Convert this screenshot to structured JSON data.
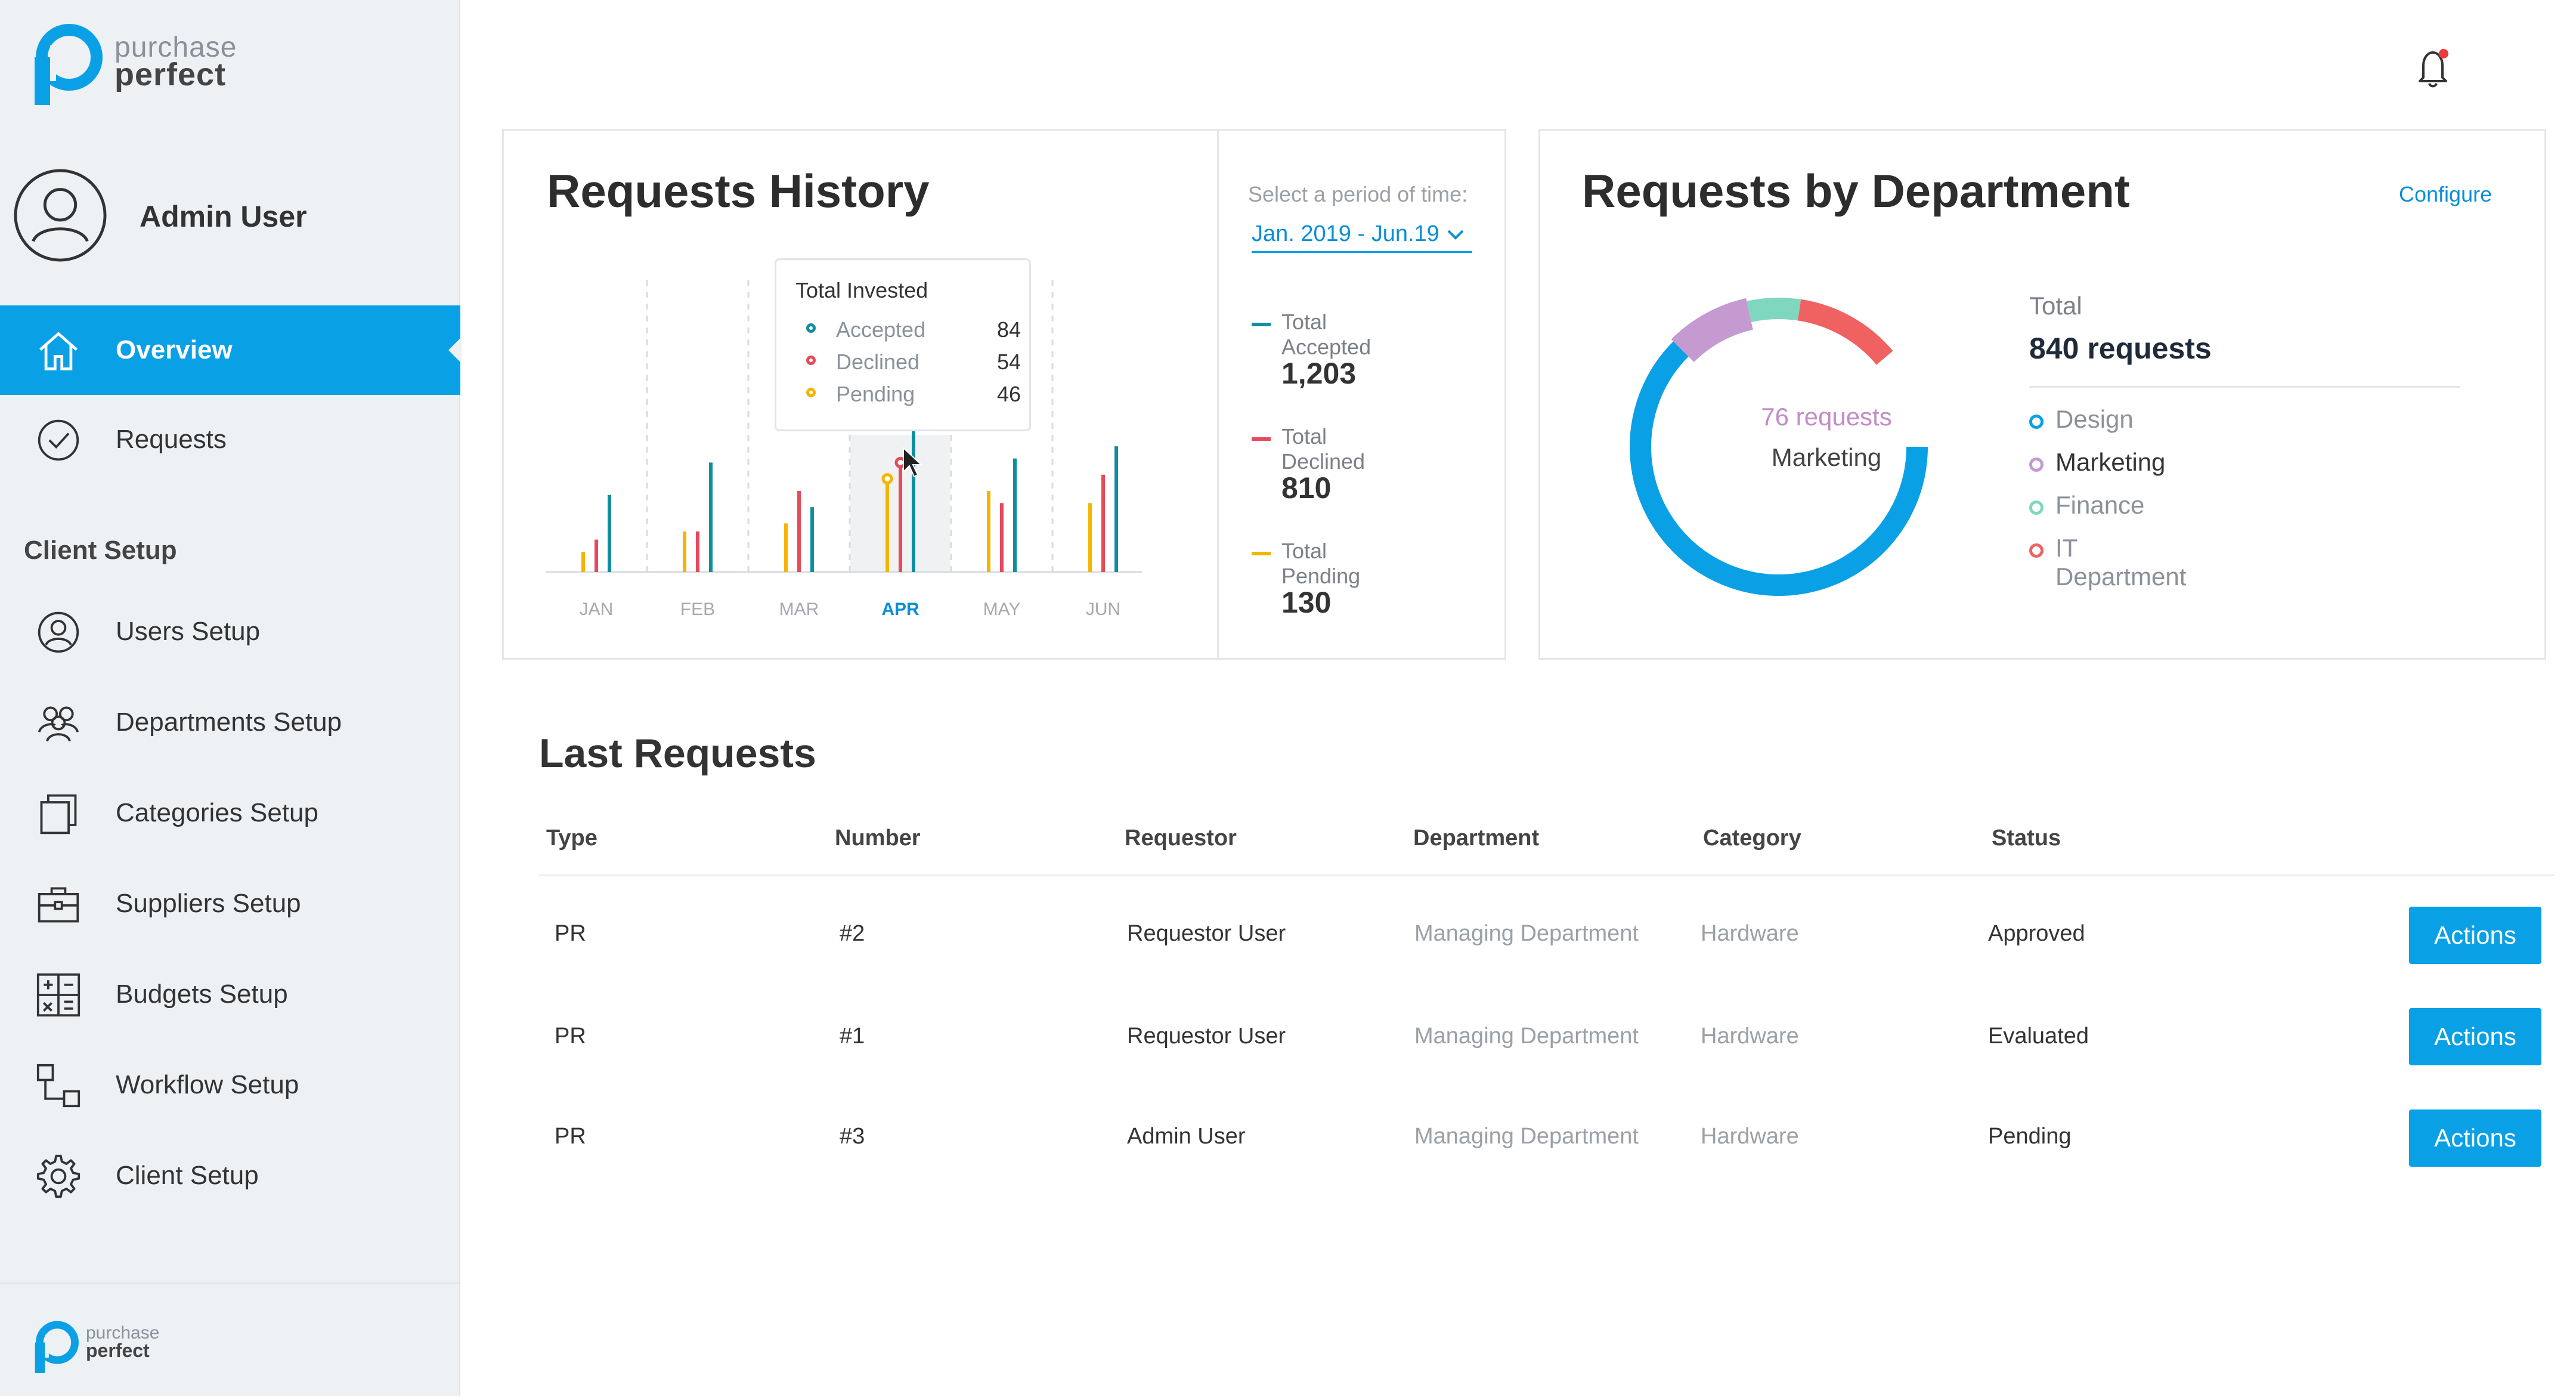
{
  "brand": {
    "line1": "purchase",
    "line2": "perfect",
    "accent": "#0aa0e6"
  },
  "user": {
    "name": "Admin User"
  },
  "nav": {
    "overview": "Overview",
    "requests": "Requests",
    "section": "Client Setup",
    "users": "Users Setup",
    "departments": "Departments Setup",
    "categories": "Categories Setup",
    "suppliers": "Suppliers Setup",
    "budgets": "Budgets Setup",
    "workflow": "Workflow Setup",
    "client": "Client Setup"
  },
  "history": {
    "title": "Requests History",
    "period_label": "Select a period of time:",
    "period_value": "Jan. 2019 - Jun.19",
    "stats": [
      {
        "label": "Total Accepted",
        "value": "1,203",
        "color": "#0f8f9e"
      },
      {
        "label": "Total Declined",
        "value": "810",
        "color": "#e54b5b"
      },
      {
        "label": "Total Pending",
        "value": "130",
        "color": "#f5b400"
      }
    ],
    "tooltip": {
      "title": "Total Invested",
      "rows": [
        {
          "name": "Accepted",
          "value": "84",
          "color": "#0f8f9e"
        },
        {
          "name": "Declined",
          "value": "54",
          "color": "#e54b5b"
        },
        {
          "name": "Pending",
          "value": "46",
          "color": "#f5b400"
        }
      ]
    }
  },
  "chart_data": [
    {
      "type": "bar",
      "title": "Requests History",
      "categories": [
        "JAN",
        "FEB",
        "MAR",
        "APR",
        "MAY",
        "JUN"
      ],
      "highlighted": "APR",
      "series": [
        {
          "name": "Pending",
          "color": "#f5b400",
          "values": [
            10,
            20,
            24,
            46,
            40,
            34
          ]
        },
        {
          "name": "Declined",
          "color": "#e54b5b",
          "values": [
            16,
            20,
            40,
            54,
            34,
            48
          ]
        },
        {
          "name": "Accepted",
          "color": "#0f8f9e",
          "values": [
            38,
            54,
            32,
            84,
            56,
            62
          ]
        }
      ],
      "ylim": [
        0,
        100
      ],
      "grid": false
    },
    {
      "type": "pie",
      "title": "Requests by Department",
      "labels": [
        "Design",
        "Marketing",
        "Finance",
        "IT Department"
      ],
      "values": [
        525,
        76,
        49,
        190
      ],
      "colors": [
        "#0aa0e6",
        "#c59ad0",
        "#7fd7c0",
        "#f06262"
      ]
    }
  ],
  "dept": {
    "title": "Requests by Department",
    "configure": "Configure",
    "total_label": "Total",
    "total_value": "840 requests",
    "center_value": "76 requests",
    "center_label": "Marketing",
    "legend": [
      {
        "label": "Design",
        "color": "#0aa0e6",
        "text_color": "#8a9199"
      },
      {
        "label": "Marketing",
        "color": "#c59ad0",
        "text_color": "#333333"
      },
      {
        "label": "Finance",
        "color": "#7fd7c0",
        "text_color": "#8a9199"
      },
      {
        "label": "IT Department",
        "color": "#f06262",
        "text_color": "#8a9199"
      }
    ]
  },
  "last_requests": {
    "title": "Last Requests",
    "headers": [
      "Type",
      "Number",
      "Requestor",
      "Department",
      "Category",
      "Status"
    ],
    "rows": [
      {
        "type": "PR",
        "number": "#2",
        "requestor": "Requestor User",
        "department": "Managing Department",
        "category": "Hardware",
        "status": "Approved",
        "action": "Actions"
      },
      {
        "type": "PR",
        "number": "#1",
        "requestor": "Requestor User",
        "department": "Managing Department",
        "category": "Hardware",
        "status": "Evaluated",
        "action": "Actions"
      },
      {
        "type": "PR",
        "number": "#3",
        "requestor": "Admin User",
        "department": "Managing Department",
        "category": "Hardware",
        "status": "Pending",
        "action": "Actions"
      }
    ]
  }
}
